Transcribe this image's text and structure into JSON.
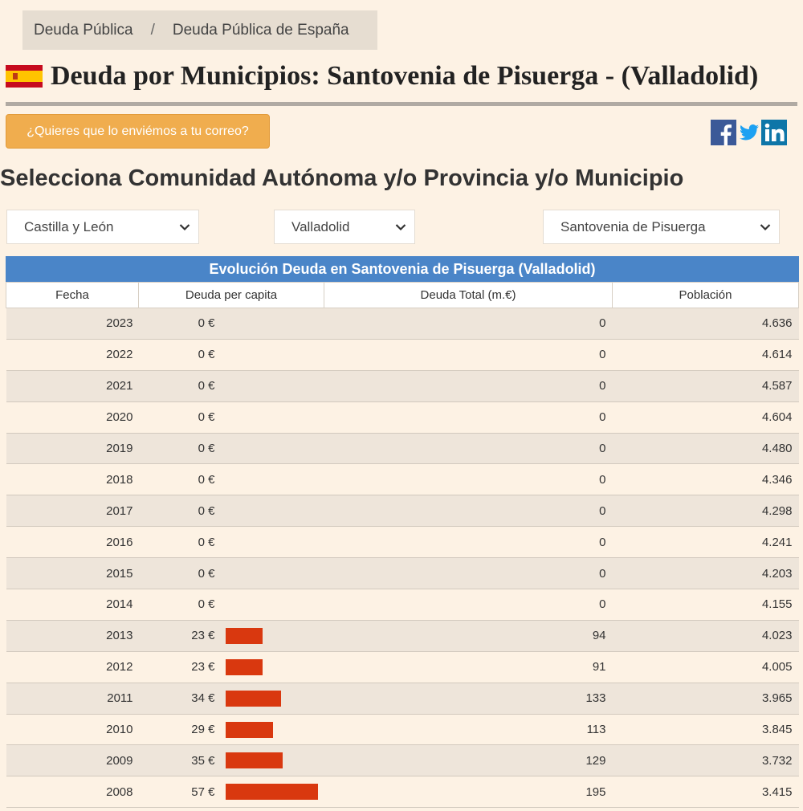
{
  "breadcrumb": {
    "items": [
      "Deuda Pública",
      "Deuda Pública de España"
    ],
    "separator": "/"
  },
  "header": {
    "title": "Deuda por Municipios: Santovenia de Pisuerga - (Valladolid)",
    "flag_icon": "spain-flag-icon"
  },
  "email_button": {
    "label": "¿Quieres que lo enviémos a tu correo?"
  },
  "social": {
    "icons": [
      "facebook-icon",
      "twitter-icon",
      "linkedin-icon"
    ],
    "colors": {
      "facebook": "#3b5998",
      "twitter": "#1da1f2",
      "linkedin": "#0e76a8"
    }
  },
  "selection": {
    "heading": "Selecciona Comunidad Autónoma y/o Provincia y/o Municipio",
    "community": "Castilla y León",
    "province": "Valladolid",
    "municipality": "Santovenia de Pisuerga"
  },
  "table": {
    "caption": "Evolución Deuda en Santovenia de Pisuerga (Valladolid)",
    "headers": [
      "Fecha",
      "Deuda per capita",
      "Deuda Total (m.€)",
      "Población"
    ],
    "bar_color": "#d9380f",
    "bar_max_value": 57,
    "rows": [
      {
        "year": "2023",
        "per_capita": "0 €",
        "per_capita_value": 0,
        "total": "0",
        "population": "4.636"
      },
      {
        "year": "2022",
        "per_capita": "0 €",
        "per_capita_value": 0,
        "total": "0",
        "population": "4.614"
      },
      {
        "year": "2021",
        "per_capita": "0 €",
        "per_capita_value": 0,
        "total": "0",
        "population": "4.587"
      },
      {
        "year": "2020",
        "per_capita": "0 €",
        "per_capita_value": 0,
        "total": "0",
        "population": "4.604"
      },
      {
        "year": "2019",
        "per_capita": "0 €",
        "per_capita_value": 0,
        "total": "0",
        "population": "4.480"
      },
      {
        "year": "2018",
        "per_capita": "0 €",
        "per_capita_value": 0,
        "total": "0",
        "population": "4.346"
      },
      {
        "year": "2017",
        "per_capita": "0 €",
        "per_capita_value": 0,
        "total": "0",
        "population": "4.298"
      },
      {
        "year": "2016",
        "per_capita": "0 €",
        "per_capita_value": 0,
        "total": "0",
        "population": "4.241"
      },
      {
        "year": "2015",
        "per_capita": "0 €",
        "per_capita_value": 0,
        "total": "0",
        "population": "4.203"
      },
      {
        "year": "2014",
        "per_capita": "0 €",
        "per_capita_value": 0,
        "total": "0",
        "population": "4.155"
      },
      {
        "year": "2013",
        "per_capita": "23 €",
        "per_capita_value": 23,
        "total": "94",
        "population": "4.023"
      },
      {
        "year": "2012",
        "per_capita": "23 €",
        "per_capita_value": 23,
        "total": "91",
        "population": "4.005"
      },
      {
        "year": "2011",
        "per_capita": "34 €",
        "per_capita_value": 34,
        "total": "133",
        "population": "3.965"
      },
      {
        "year": "2010",
        "per_capita": "29 €",
        "per_capita_value": 29,
        "total": "113",
        "population": "3.845"
      },
      {
        "year": "2009",
        "per_capita": "35 €",
        "per_capita_value": 35,
        "total": "129",
        "population": "3.732"
      },
      {
        "year": "2008",
        "per_capita": "57 €",
        "per_capita_value": 57,
        "total": "195",
        "population": "3.415"
      }
    ]
  }
}
